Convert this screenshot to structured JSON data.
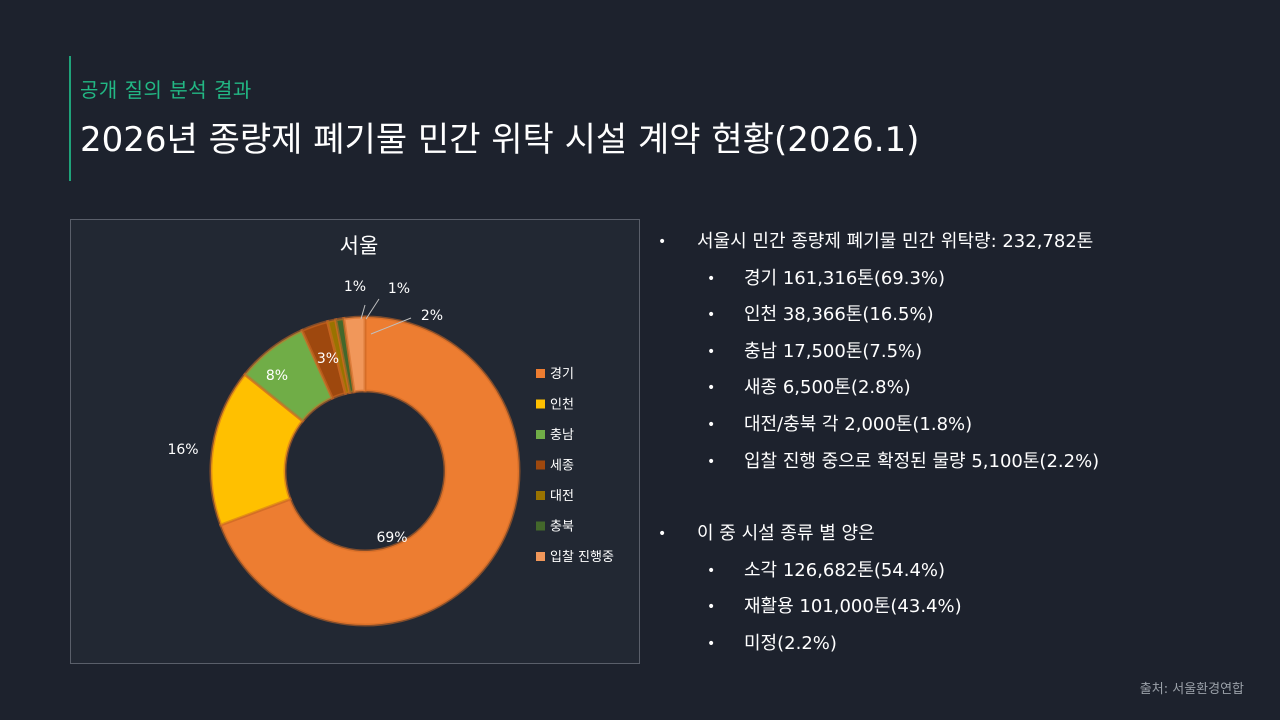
{
  "header": {
    "kicker": "공개 질의 분석 결과",
    "title": "2026년 종량제 폐기물 민간 위탁 시설 계약 현황(2026.1)"
  },
  "colors": {
    "accent": "#22b884",
    "background": "#1d222d",
    "chart_background": "#222833"
  },
  "chart_data": {
    "type": "pie",
    "subtype": "doughnut",
    "title": "서울",
    "categories": [
      "경기",
      "인천",
      "충남",
      "세종",
      "대전",
      "충북",
      "입찰 진행중"
    ],
    "values": [
      161316,
      38366,
      17500,
      6500,
      2000,
      2000,
      5100
    ],
    "labels": [
      "69%",
      "16%",
      "8%",
      "3%",
      "1%",
      "1%",
      "2%"
    ],
    "colors": [
      "#ed7d31",
      "#ffc000",
      "#70ad47",
      "#9e480e",
      "#997300",
      "#43682b",
      "#f1975a"
    ],
    "legend_position": "right"
  },
  "bullets": [
    {
      "level": 1,
      "text": "서울시 민간 종량제 폐기물 민간 위탁량: 232,782톤"
    },
    {
      "level": 2,
      "text": "경기 161,316톤(69.3%)"
    },
    {
      "level": 2,
      "text": "인천 38,366톤(16.5%)"
    },
    {
      "level": 2,
      "text": "충남 17,500톤(7.5%)"
    },
    {
      "level": 2,
      "text": "새종 6,500톤(2.8%)"
    },
    {
      "level": 2,
      "text": "대전/충북 각 2,000톤(1.8%)"
    },
    {
      "level": 2,
      "text": "입찰 진행 중으로 확정된 물량 5,100톤(2.2%)"
    },
    {
      "level": 0,
      "text": ""
    },
    {
      "level": 1,
      "text": "이 중 시설 종류 별 양은"
    },
    {
      "level": 2,
      "text": "소각 126,682톤(54.4%)"
    },
    {
      "level": 2,
      "text": "재활용 101,000톤(43.4%)"
    },
    {
      "level": 2,
      "text": "미정(2.2%)"
    }
  ],
  "footer": {
    "source": "출처: 서울환경연합"
  }
}
